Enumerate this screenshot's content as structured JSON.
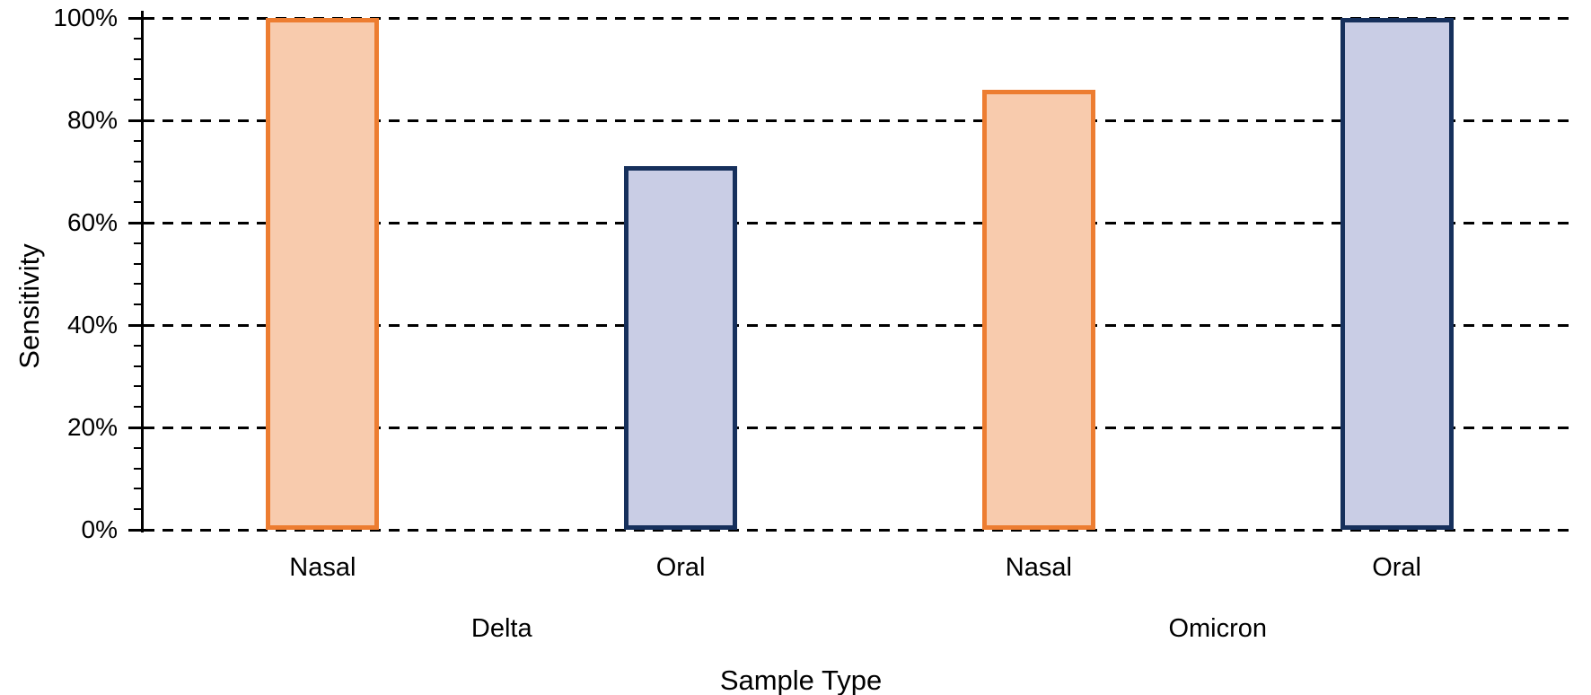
{
  "chart_data": {
    "type": "bar",
    "title": "",
    "xlabel": "Sample Type",
    "ylabel": "Sensitivity",
    "categories": [
      "Nasal",
      "Oral",
      "Nasal",
      "Oral"
    ],
    "groups": [
      {
        "label": "Delta",
        "span": [
          0,
          1
        ]
      },
      {
        "label": "Omicron",
        "span": [
          2,
          3
        ]
      }
    ],
    "series": [
      {
        "name": "Sensitivity",
        "values": [
          100,
          71,
          86,
          100
        ]
      }
    ],
    "ylim": [
      0,
      100
    ],
    "y_major_unit": 20,
    "y_minor_unit": 4,
    "y_tick_labels": [
      "0%",
      "20%",
      "40%",
      "60%",
      "80%",
      "100%"
    ],
    "grid": "horizontal-dashed",
    "legend": "none",
    "bar_styles": [
      {
        "fill": "#F8CBAD",
        "border": "#ED7D31"
      },
      {
        "fill": "#C9CDE5",
        "border": "#16305C"
      },
      {
        "fill": "#F8CBAD",
        "border": "#ED7D31"
      },
      {
        "fill": "#C9CDE5",
        "border": "#16305C"
      }
    ],
    "colors": {
      "axis": "#000000",
      "gridline": "#000000",
      "text": "#000000",
      "background": "#FFFFFF"
    }
  }
}
